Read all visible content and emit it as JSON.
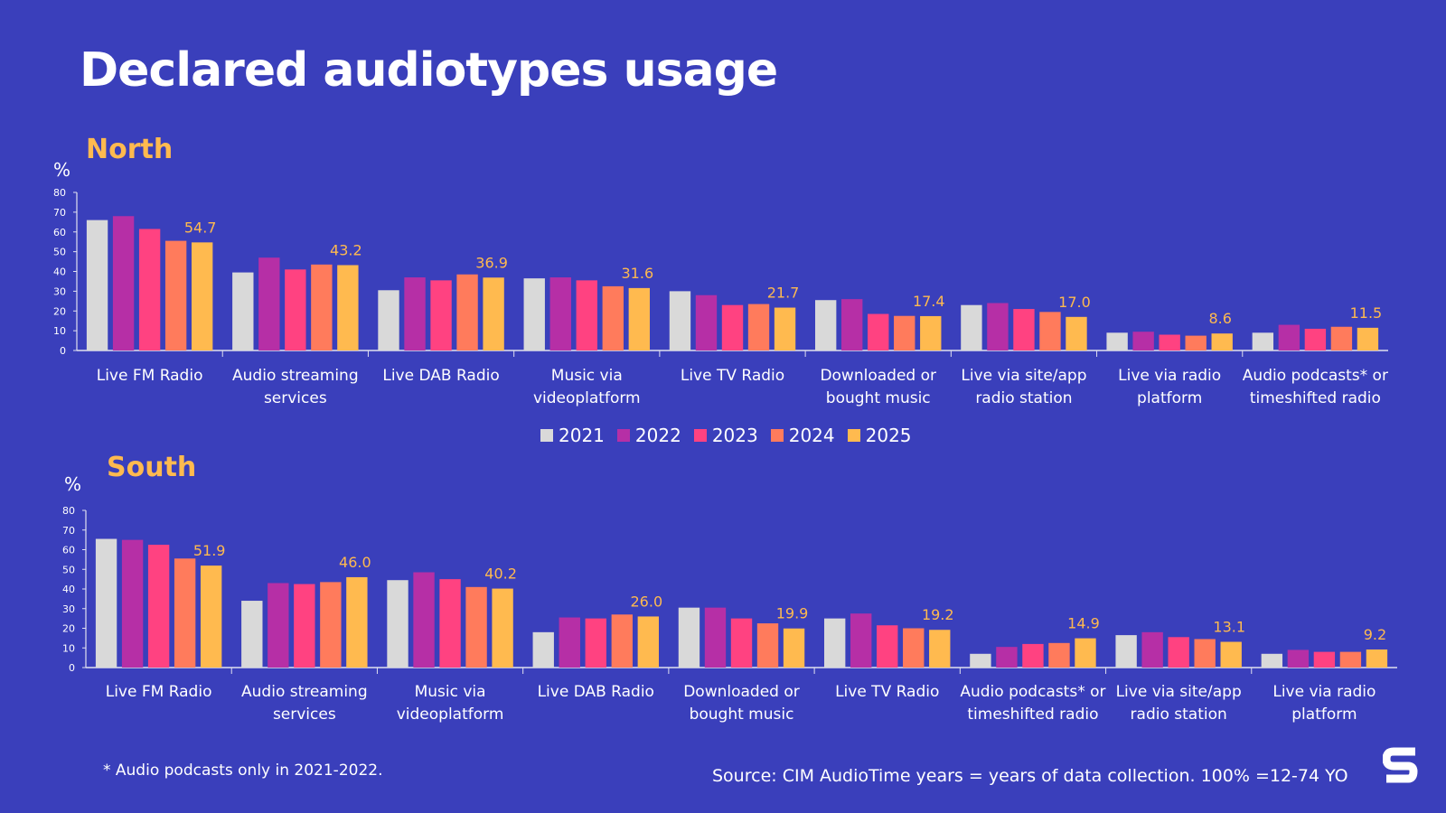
{
  "title": "Declared audiotypes usage",
  "footnote": "* Audio podcasts only in 2021-2022.",
  "source": "Source: CIM AudioTime years = years of data collection. 100% =12-74 YO",
  "logo_text": "S",
  "colors": {
    "background": "#3a3fbb",
    "2021": "#d9d9d9",
    "2022": "#b62fa6",
    "2023": "#ff4281",
    "2024": "#ff7b5c",
    "2025": "#ffba4f",
    "label": "#ffba4f"
  },
  "legend": [
    "2021",
    "2022",
    "2023",
    "2024",
    "2025"
  ],
  "chart_data": [
    {
      "type": "bar",
      "title": "North",
      "ylabel": "%",
      "ylim": [
        0,
        80
      ],
      "yticks": [
        "0",
        "10",
        "20",
        "30",
        "40",
        "50",
        "60",
        "70",
        "80"
      ],
      "legend_position": "bottom",
      "categories": [
        [
          "Live FM Radio"
        ],
        [
          "Audio streaming",
          "services"
        ],
        [
          "Live DAB Radio"
        ],
        [
          "Music via",
          "videoplatform"
        ],
        [
          "Live TV Radio"
        ],
        [
          "Downloaded or",
          "bought music"
        ],
        [
          "Live via site/app",
          "radio station"
        ],
        [
          "Live via radio",
          "platform"
        ],
        [
          "Audio podcasts* or",
          "timeshifted radio"
        ]
      ],
      "series": [
        {
          "name": "2021",
          "values": [
            66,
            39.5,
            30.5,
            36.5,
            30,
            25.5,
            23,
            9,
            9
          ]
        },
        {
          "name": "2022",
          "values": [
            68,
            47,
            37,
            37,
            28,
            26,
            24,
            9.5,
            13
          ]
        },
        {
          "name": "2023",
          "values": [
            61.5,
            41,
            35.5,
            35.5,
            23,
            18.5,
            21,
            8,
            11
          ]
        },
        {
          "name": "2024",
          "values": [
            55.5,
            43.5,
            38.5,
            32.5,
            23.5,
            17.5,
            19.5,
            7.5,
            12
          ]
        },
        {
          "name": "2025",
          "values": [
            54.7,
            43.2,
            36.9,
            31.6,
            21.7,
            17.4,
            17.0,
            8.6,
            11.5
          ]
        }
      ],
      "data_labels": [
        "54.7",
        "43.2",
        "36.9",
        "31.6",
        "21.7",
        "17.4",
        "17.0",
        "8.6",
        "11.5"
      ]
    },
    {
      "type": "bar",
      "title": "South",
      "ylabel": "%",
      "ylim": [
        0,
        80
      ],
      "yticks": [
        "0",
        "10",
        "20",
        "30",
        "40",
        "50",
        "60",
        "70",
        "80"
      ],
      "categories": [
        [
          "Live FM Radio"
        ],
        [
          "Audio streaming",
          "services"
        ],
        [
          "Music via",
          "videoplatform"
        ],
        [
          "Live DAB Radio"
        ],
        [
          "Downloaded or",
          "bought music"
        ],
        [
          "Live TV Radio"
        ],
        [
          "Audio podcasts* or",
          "timeshifted radio"
        ],
        [
          "Live via site/app",
          "radio station"
        ],
        [
          "Live via radio",
          "platform"
        ]
      ],
      "series": [
        {
          "name": "2021",
          "values": [
            65.5,
            34,
            44.5,
            18,
            30.5,
            25,
            7,
            16.5,
            7
          ]
        },
        {
          "name": "2022",
          "values": [
            65,
            43,
            48.5,
            25.5,
            30.5,
            27.5,
            10.5,
            18,
            9
          ]
        },
        {
          "name": "2023",
          "values": [
            62.5,
            42.5,
            45,
            25,
            25,
            21.5,
            12,
            15.5,
            8
          ]
        },
        {
          "name": "2024",
          "values": [
            55.5,
            43.5,
            41,
            27,
            22.5,
            20,
            12.5,
            14.5,
            8
          ]
        },
        {
          "name": "2025",
          "values": [
            51.9,
            46.0,
            40.2,
            26.0,
            19.9,
            19.2,
            14.9,
            13.1,
            9.2
          ]
        }
      ],
      "data_labels": [
        "51.9",
        "46.0",
        "40.2",
        "26.0",
        "19.9",
        "19.2",
        "14.9",
        "13.1",
        "9.2"
      ]
    }
  ]
}
